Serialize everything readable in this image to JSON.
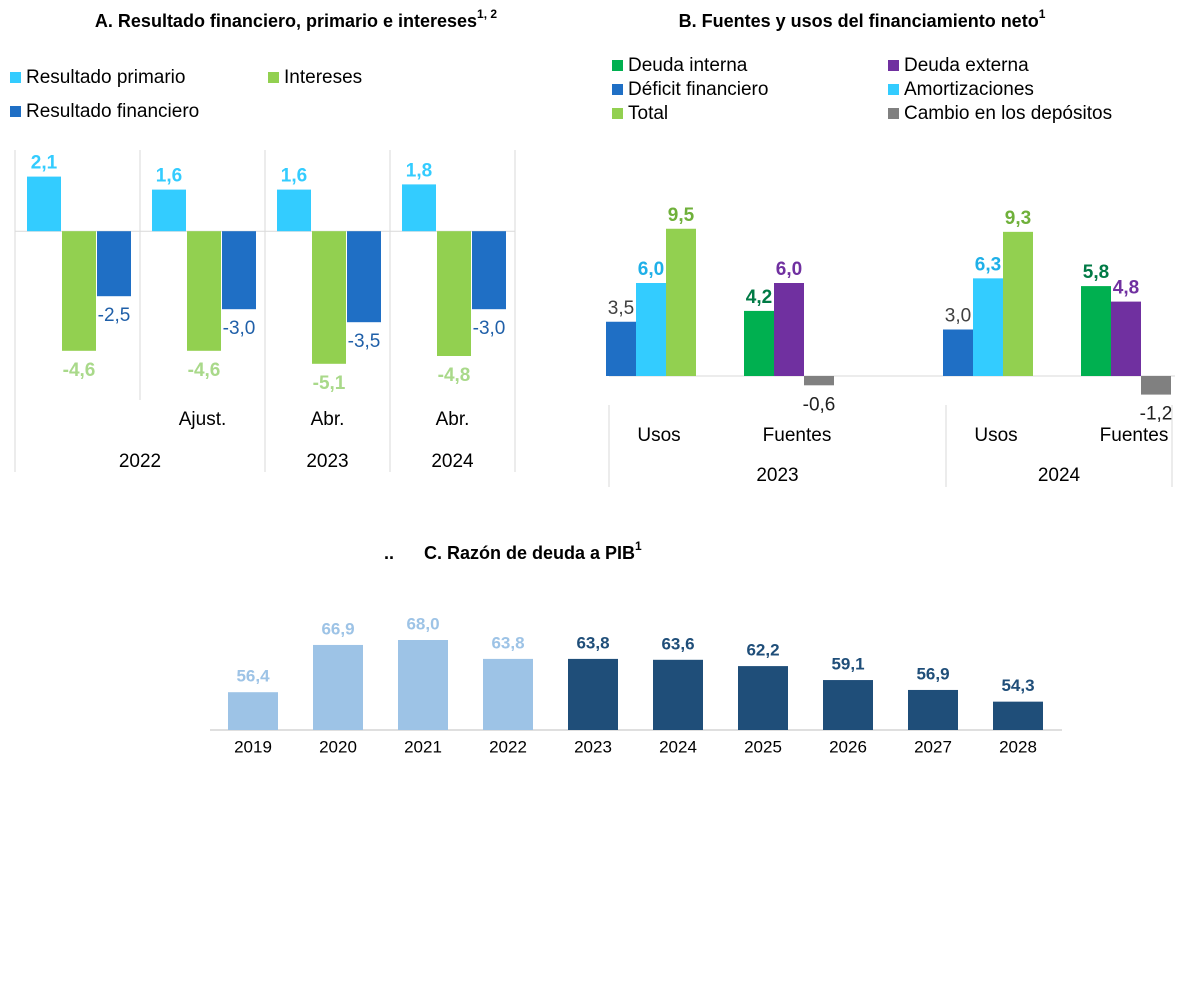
{
  "chart_data": [
    {
      "type": "bar",
      "title": "A. Resultado financiero, primario e intereses",
      "title_sup": "1, 2",
      "categories": [
        null,
        "Ajust.",
        "Abr.",
        "Abr."
      ],
      "groups": [
        {
          "label": "2022",
          "count": 2
        },
        {
          "label": "2023",
          "count": 1
        },
        {
          "label": "2024",
          "count": 1
        }
      ],
      "ylim": [
        -5.8,
        3.2
      ],
      "series": [
        {
          "name": "Resultado primario",
          "color": "#33ccff",
          "label_color": "#33ccff",
          "label_bold": true,
          "values": [
            2.1,
            1.6,
            1.6,
            1.8
          ],
          "value_labels": [
            "2,1",
            "1,6",
            "1,6",
            "1,8"
          ]
        },
        {
          "name": "Intereses",
          "color": "#92d050",
          "label_color": "#a9d98a",
          "label_bold": true,
          "values": [
            -4.6,
            -4.6,
            -5.1,
            -4.8
          ],
          "value_labels": [
            "-4,6",
            "-4,6",
            "-5,1",
            "-4,8"
          ]
        },
        {
          "name": "Resultado financiero",
          "color": "#1f6fc5",
          "label_color": "#1f5fa8",
          "label_bold": false,
          "values": [
            -2.5,
            -3.0,
            -3.5,
            -3.0
          ],
          "value_labels": [
            "-2,5",
            "-3,0",
            "-3,5",
            "-3,0"
          ]
        }
      ]
    },
    {
      "type": "bar",
      "title": "B. Fuentes y usos del financiamiento neto",
      "title_sup": "1",
      "categories": [
        "Usos",
        "Fuentes",
        "Usos",
        "Fuentes"
      ],
      "groups": [
        {
          "label": "2023",
          "count": 2
        },
        {
          "label": "2024",
          "count": 2
        }
      ],
      "ylim": [
        -2,
        12
      ],
      "series": [
        {
          "name": "Deuda interna",
          "color": "#00b050",
          "label_color": "#007a45",
          "label_bold": true,
          "values": [
            null,
            4.2,
            null,
            5.8
          ],
          "value_labels": [
            null,
            "4,2",
            null,
            "5,8"
          ]
        },
        {
          "name": "Deuda externa",
          "color": "#7030a0",
          "label_color": "#7030a0",
          "label_bold": true,
          "values": [
            null,
            6.0,
            null,
            4.8
          ],
          "value_labels": [
            null,
            "6,0",
            null,
            "4,8"
          ]
        },
        {
          "name": "Déficit financiero",
          "color": "#1f6fc5",
          "label_color": "#404040",
          "label_bold": false,
          "values": [
            3.5,
            null,
            3.0,
            null
          ],
          "value_labels": [
            "3,5",
            null,
            "3,0",
            null
          ]
        },
        {
          "name": "Amortizaciones",
          "color": "#33ccff",
          "label_color": "#1fb0e8",
          "label_bold": true,
          "values": [
            6.0,
            null,
            6.3,
            null
          ],
          "value_labels": [
            "6,0",
            null,
            "6,3",
            null
          ]
        },
        {
          "name": "Total",
          "color": "#92d050",
          "label_color": "#6fb03a",
          "label_bold": true,
          "values": [
            9.5,
            null,
            9.3,
            null
          ],
          "value_labels": [
            "9,5",
            null,
            "9,3",
            null
          ]
        },
        {
          "name": "Cambio en los depósitos",
          "color": "#808080",
          "label_color": "#202020",
          "label_bold": false,
          "values": [
            null,
            -0.6,
            null,
            -1.2
          ],
          "value_labels": [
            null,
            "-0,6",
            null,
            "-1,2"
          ]
        }
      ]
    },
    {
      "type": "bar",
      "title_prefix": "..",
      "title": "C. Razón de deuda a PIB",
      "title_sup": "1",
      "categories": [
        "2019",
        "2020",
        "2021",
        "2022",
        "2023",
        "2024",
        "2025",
        "2026",
        "2027",
        "2028"
      ],
      "values": [
        56.4,
        66.9,
        68.0,
        63.8,
        63.8,
        63.6,
        62.2,
        59.1,
        56.9,
        54.3
      ],
      "value_labels": [
        "56,4",
        "66,9",
        "68,0",
        "63,8",
        "63,8",
        "63,6",
        "62,2",
        "59,1",
        "56,9",
        "54,3"
      ],
      "colors": [
        "#9dc3e6",
        "#9dc3e6",
        "#9dc3e6",
        "#9dc3e6",
        "#1f4e79",
        "#1f4e79",
        "#1f4e79",
        "#1f4e79",
        "#1f4e79",
        "#1f4e79"
      ],
      "ylim": [
        48,
        72
      ]
    }
  ]
}
